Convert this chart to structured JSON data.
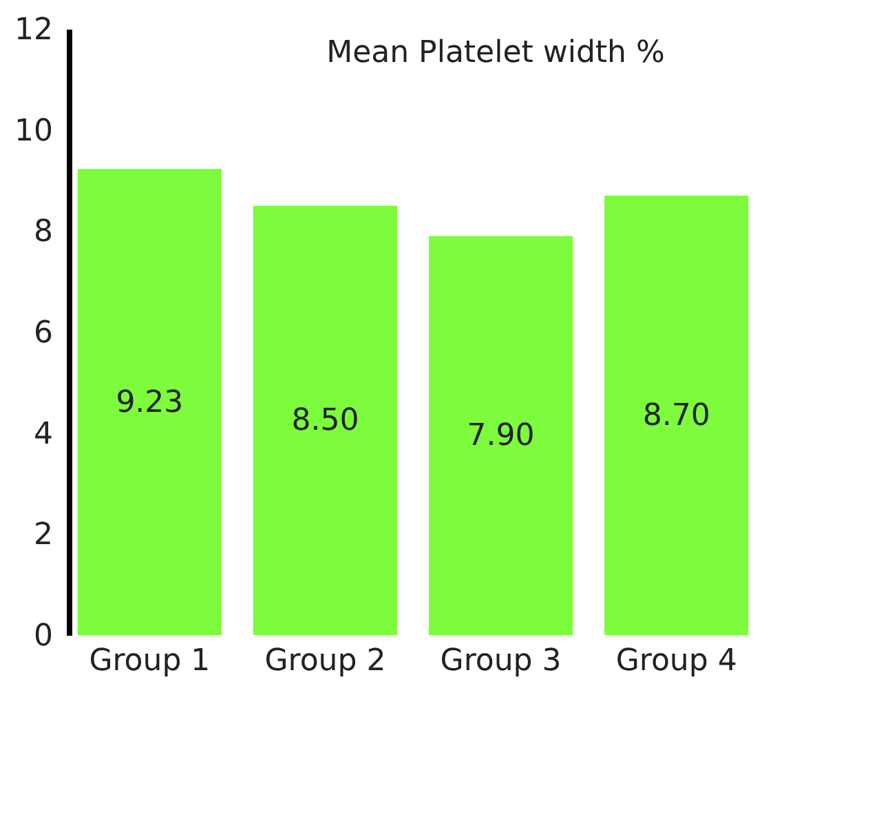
{
  "chart_data": {
    "type": "bar",
    "title": "Mean Platelet  width %",
    "categories": [
      "Group 1",
      "Group 2",
      "Group 3",
      "Group 4"
    ],
    "values": [
      9.23,
      8.5,
      7.9,
      8.7
    ],
    "value_labels": [
      "9.23",
      "8.50",
      "7.90",
      "8.70"
    ],
    "color": "#7cfc3c",
    "ylim": [
      0,
      12
    ],
    "yticks": [
      0,
      2,
      4,
      6,
      8,
      10,
      12
    ],
    "grid": false
  }
}
